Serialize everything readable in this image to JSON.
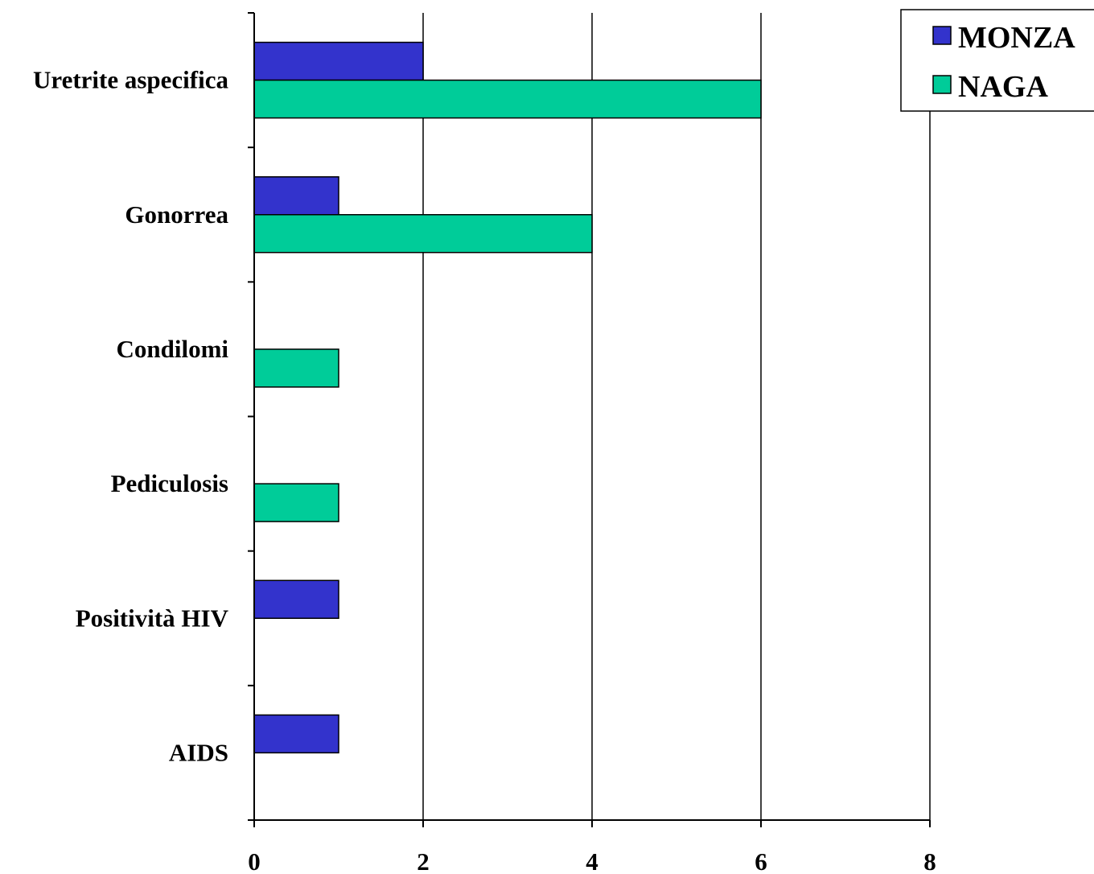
{
  "chart_data": {
    "type": "bar",
    "orientation": "horizontal",
    "categories": [
      "Uretrite aspecifica",
      "Gonorrea",
      "Condilomi",
      "Pediculosis",
      "Positività HIV",
      "AIDS"
    ],
    "series": [
      {
        "name": "MONZA",
        "color": "#3333cc",
        "values": [
          2,
          1,
          0,
          0,
          1,
          1
        ]
      },
      {
        "name": "NAGA",
        "color": "#00cc99",
        "values": [
          6,
          4,
          1,
          1,
          0,
          0
        ]
      }
    ],
    "xlim": [
      0,
      8
    ],
    "xticks": [
      "0",
      "2",
      "4",
      "6",
      "8"
    ],
    "grid": "vertical",
    "legend_position": "top-right"
  }
}
